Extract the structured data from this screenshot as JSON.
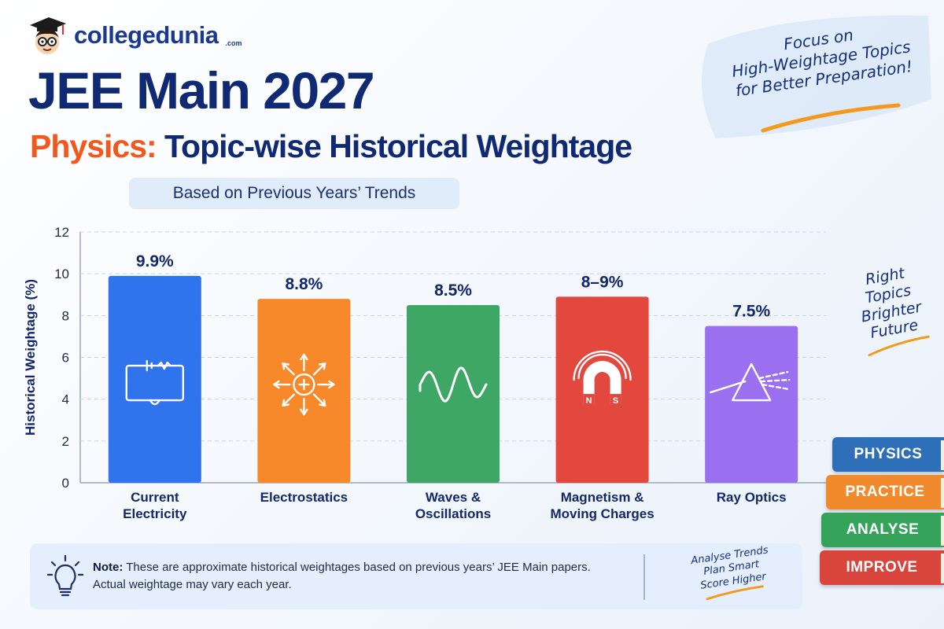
{
  "brand": {
    "name": "collegedunia",
    "suffix": ".com"
  },
  "title": {
    "line1": "JEE Main 2027",
    "line2_accent": "Physics:",
    "line2_rest": " Topic-wise Historical Weightage"
  },
  "subtitle": "Based on Previous Years’ Trends",
  "callout": {
    "lines": [
      "Focus on",
      "High-Weightage Topics",
      "for Better Preparation!"
    ]
  },
  "side_note": {
    "lines": [
      "Right",
      "Topics",
      "Brighter",
      "Future"
    ]
  },
  "note": {
    "label": "Note:",
    "line1": " These are approximate historical weightages based on previous years’ JEE Main papers.",
    "line2": "Actual weightage may vary each year.",
    "hand_lines": [
      "Analyse Trends",
      "Plan Smart",
      "Score Higher"
    ]
  },
  "books": [
    {
      "label": "PHYSICS",
      "color": "#2d6fb8"
    },
    {
      "label": "PRACTICE",
      "color": "#f08a2c"
    },
    {
      "label": "ANALYSE",
      "color": "#35a35a"
    },
    {
      "label": "IMPROVE",
      "color": "#d9453c"
    }
  ],
  "chart_data": {
    "type": "bar",
    "ylabel": "Historical Weightage (%)",
    "ylim": [
      0,
      12
    ],
    "yticks": [
      0,
      2,
      4,
      6,
      8,
      10,
      12
    ],
    "grid": true,
    "categories": [
      [
        "Current",
        "Electricity"
      ],
      [
        "Electrostatics"
      ],
      [
        "Waves &",
        "Oscillations"
      ],
      [
        "Magnetism &",
        "Moving Charges"
      ],
      [
        "Ray Optics"
      ]
    ],
    "values": [
      9.9,
      8.8,
      8.5,
      8.9,
      7.5
    ],
    "data_labels": [
      "9.9%",
      "8.8%",
      "8.5%",
      "8–9%",
      "7.5%"
    ],
    "colors": [
      "#2f74ec",
      "#f7892b",
      "#3fa766",
      "#e3483f",
      "#9a6ff0"
    ],
    "icons": [
      "circuit-icon",
      "charge-field-icon",
      "wave-icon",
      "magnet-icon",
      "prism-icon"
    ]
  }
}
